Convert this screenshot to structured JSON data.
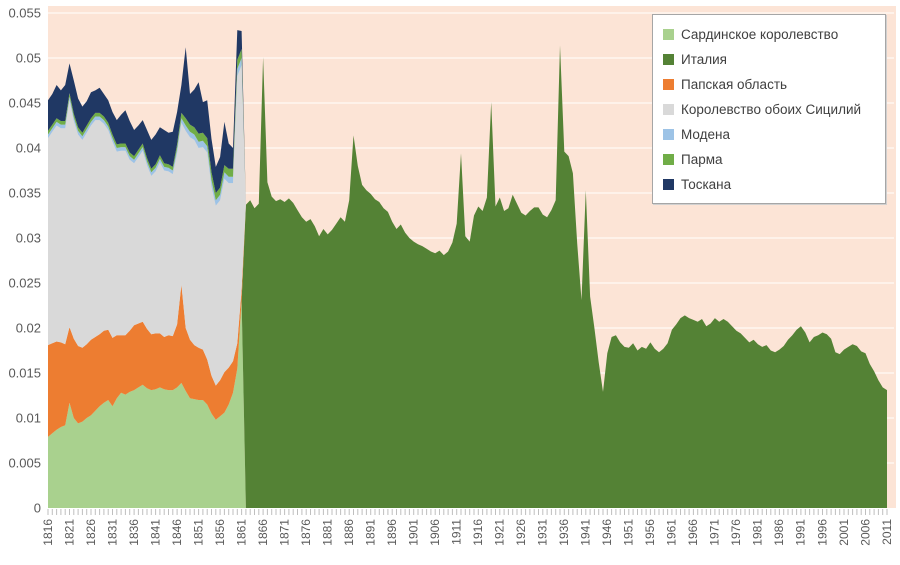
{
  "chart_data": {
    "type": "area",
    "stacked": true,
    "title": "",
    "x_min": 1816,
    "x_max": 2011,
    "y_min": 0,
    "y_max": 0.055,
    "y_step": 0.005,
    "value_scale": 0.0001,
    "plot_bg": "#fce4d6",
    "gridline_color": "#ffffff",
    "tick_color": "#bfbfbf",
    "label_color": "#595959",
    "y_tick_labels": [
      "0",
      "0.005",
      "0.01",
      "0.015",
      "0.02",
      "0.025",
      "0.03",
      "0.035",
      "0.04",
      "0.045",
      "0.05",
      "0.055"
    ],
    "x_label_interval": 5,
    "x_tick_labels": [
      "1816",
      "1821",
      "1826",
      "1831",
      "1836",
      "1841",
      "1846",
      "1851",
      "1856",
      "1861",
      "1866",
      "1871",
      "1876",
      "1881",
      "1886",
      "1891",
      "1896",
      "1901",
      "1906",
      "1911",
      "1916",
      "1921",
      "1926",
      "1931",
      "1936",
      "1941",
      "1946",
      "1951",
      "1956",
      "1961",
      "1966",
      "1971",
      "1976",
      "1981",
      "1986",
      "1991",
      "1996",
      "2001",
      "2006",
      "2011"
    ],
    "legend": {
      "position": "top-right",
      "bg": "#ffffff",
      "border_color": "#a6a6a6"
    },
    "series": [
      {
        "name": "Сардинское королевство",
        "color": "#a9d18e",
        "start": 1816,
        "values": [
          79,
          83,
          87,
          90,
          92,
          117,
          100,
          94,
          96,
          100,
          103,
          108,
          113,
          117,
          120,
          113,
          122,
          128,
          126,
          129,
          131,
          134,
          137,
          133,
          131,
          132,
          134,
          132,
          131,
          131,
          134,
          139,
          130,
          122,
          121,
          120,
          120,
          115,
          105,
          98,
          102,
          106,
          115,
          128,
          155,
          231
        ]
      },
      {
        "name": "Италия",
        "color": "#548235",
        "start": 1862,
        "values": [
          337,
          342,
          333,
          338,
          501,
          362,
          346,
          341,
          343,
          340,
          344,
          339,
          331,
          323,
          318,
          321,
          313,
          302,
          310,
          304,
          309,
          316,
          323,
          318,
          342,
          414,
          380,
          359,
          353,
          349,
          343,
          340,
          333,
          329,
          318,
          310,
          315,
          306,
          300,
          296,
          293,
          291,
          288,
          285,
          283,
          286,
          281,
          285,
          295,
          316,
          394,
          302,
          296,
          325,
          335,
          330,
          345,
          451,
          335,
          345,
          330,
          333,
          348,
          338,
          328,
          325,
          330,
          334,
          334,
          326,
          323,
          331,
          342,
          514,
          396,
          391,
          372,
          294,
          231,
          353,
          235,
          200,
          162,
          129,
          172,
          190,
          192,
          184,
          179,
          178,
          183,
          175,
          179,
          177,
          184,
          177,
          173,
          177,
          183,
          198,
          204,
          211,
          214,
          211,
          209,
          207,
          210,
          202,
          205,
          211,
          207,
          210,
          207,
          202,
          197,
          194,
          189,
          184,
          187,
          182,
          179,
          181,
          175,
          173,
          176,
          180,
          187,
          192,
          198,
          202,
          195,
          184,
          190,
          192,
          195,
          193,
          188,
          173,
          171,
          176,
          179,
          182,
          180,
          174,
          172,
          160,
          152,
          142,
          134,
          131
        ]
      },
      {
        "name": "Папская область",
        "color": "#ed7d31",
        "start": 1816,
        "values": [
          102,
          100,
          98,
          94,
          90,
          84,
          88,
          86,
          82,
          82,
          84,
          82,
          80,
          80,
          78,
          76,
          70,
          64,
          66,
          68,
          72,
          71,
          70,
          66,
          62,
          62,
          60,
          58,
          61,
          60,
          70,
          109,
          70,
          65,
          60,
          58,
          56,
          50,
          42,
          38,
          40,
          45,
          41,
          35,
          28,
          12
        ]
      },
      {
        "name": "Королевство обоих Сицилий",
        "color": "#d9d9d9",
        "start": 1816,
        "values": [
          230,
          235,
          240,
          238,
          240,
          252,
          242,
          235,
          231,
          235,
          238,
          241,
          238,
          230,
          222,
          218,
          204,
          205,
          205,
          190,
          180,
          185,
          190,
          182,
          176,
          180,
          190,
          185,
          182,
          180,
          190,
          180,
          219,
          225,
          228,
          222,
          225,
          230,
          210,
          200,
          200,
          215,
          205,
          198,
          297,
          249
        ]
      },
      {
        "name": "Модена",
        "color": "#9dc3e6",
        "start": 1816,
        "values": [
          4,
          4,
          4,
          4,
          4,
          4,
          4,
          4,
          4,
          4,
          4,
          4,
          4,
          4,
          4,
          4,
          4,
          4,
          4,
          4,
          4,
          4,
          4,
          4,
          4,
          4,
          4,
          4,
          4,
          4,
          5,
          5,
          6,
          6,
          6,
          7,
          7,
          7,
          7,
          6,
          6,
          7,
          7,
          7,
          8,
          8
        ]
      },
      {
        "name": "Парма",
        "color": "#70ad47",
        "start": 1816,
        "values": [
          4,
          4,
          4,
          4,
          4,
          4,
          4,
          4,
          4,
          4,
          4,
          4,
          4,
          4,
          4,
          4,
          4,
          4,
          4,
          4,
          4,
          4,
          4,
          4,
          4,
          4,
          4,
          4,
          4,
          4,
          5,
          6,
          8,
          8,
          8,
          9,
          9,
          9,
          9,
          8,
          8,
          8,
          9,
          9,
          10,
          10
        ]
      },
      {
        "name": "Тоскана",
        "color": "#203864",
        "start": 1816,
        "values": [
          34,
          34,
          37,
          34,
          40,
          33,
          37,
          32,
          29,
          27,
          29,
          25,
          28,
          25,
          25,
          25,
          27,
          32,
          37,
          35,
          29,
          27,
          26,
          31,
          32,
          33,
          31,
          37,
          35,
          39,
          36,
          31,
          79,
          34,
          42,
          57,
          34,
          42,
          37,
          29,
          34,
          48,
          28,
          23,
          33,
          20
        ]
      }
    ]
  }
}
